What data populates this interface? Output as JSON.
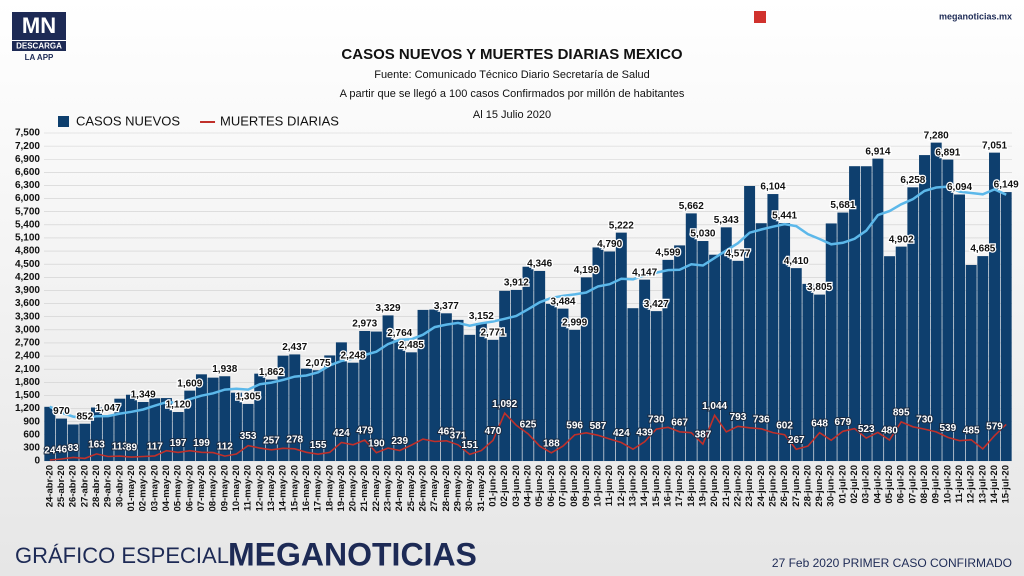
{
  "header": {
    "logo": "MN",
    "logo_sub": "DESCARGA",
    "logo_app": "LA APP",
    "site": "meganoticias.mx"
  },
  "footer": {
    "left": "GRÁFICO ESPECIAL",
    "brand": "MEGANOTICIAS",
    "right": "27 Feb 2020 PRIMER CASO CONFIRMADO"
  },
  "chart_data": {
    "type": "bar",
    "title": "CASOS NUEVOS Y MUERTES DIARIAS MEXICO",
    "subtitle": [
      "Fuente: Comunicado Técnico Diario Secretaría de Salud",
      "A partir que se llegó a 100 casos Confirmados por millón de habitantes",
      "Al 15 Julio 2020"
    ],
    "categories": [
      "24-abr-20",
      "25-abr-20",
      "26-abr-20",
      "27-abr-20",
      "28-abr-20",
      "29-abr-20",
      "30-abr-20",
      "01-may-20",
      "02-may-20",
      "03-may-20",
      "04-may-20",
      "05-may-20",
      "06-may-20",
      "07-may-20",
      "08-may-20",
      "09-may-20",
      "10-may-20",
      "11-may-20",
      "12-may-20",
      "13-may-20",
      "14-may-20",
      "15-may-20",
      "16-may-20",
      "17-may-20",
      "18-may-20",
      "19-may-20",
      "20-may-20",
      "21-may-20",
      "22-may-20",
      "23-may-20",
      "24-may-20",
      "25-may-20",
      "26-may-20",
      "27-may-20",
      "28-may-20",
      "29-may-20",
      "30-may-20",
      "31-may-20",
      "01-jun-20",
      "02-jun-20",
      "03-jun-20",
      "04-jun-20",
      "05-jun-20",
      "06-jun-20",
      "07-jun-20",
      "08-jun-20",
      "09-jun-20",
      "10-jun-20",
      "11-jun-20",
      "12-jun-20",
      "13-jun-20",
      "14-jun-20",
      "15-jun-20",
      "16-jun-20",
      "17-jun-20",
      "18-jun-20",
      "19-jun-20",
      "20-jun-20",
      "21-jun-20",
      "22-jun-20",
      "23-jun-20",
      "24-jun-20",
      "25-jun-20",
      "26-jun-20",
      "27-jun-20",
      "28-jun-20",
      "29-jun-20",
      "30-jun-20",
      "01-jul-20",
      "02-jul-20",
      "03-jul-20",
      "04-jul-20",
      "05-jul-20",
      "06-jul-20",
      "07-jul-20",
      "08-jul-20",
      "09-jul-20",
      "10-jul-20",
      "11-jul-20",
      "12-jul-20",
      "13-jul-20",
      "14-jul-20",
      "15-jul-20"
    ],
    "series": [
      {
        "name": "CASOS NUEVOS",
        "type": "bar",
        "color": "#0e3f6e",
        "trend_color": "#5cb8ea",
        "values": [
          1239,
          970,
          835,
          852,
          1223,
          1047,
          1425,
          1515,
          1349,
          1434,
          1439,
          1120,
          1609,
          1982,
          1906,
          1938,
          1562,
          1305,
          1997,
          1862,
          2409,
          2437,
          2112,
          2075,
          2414,
          2713,
          2248,
          2973,
          2960,
          3329,
          2764,
          2485,
          3455,
          3463,
          3377,
          3227,
          2885,
          3152,
          2771,
          3891,
          3912,
          4442,
          4346,
          3593,
          3484,
          2999,
          4199,
          4883,
          4790,
          5222,
          3494,
          4147,
          3427,
          4599,
          4930,
          5662,
          5030,
          4717,
          5343,
          4577,
          6288,
          5437,
          6104,
          5441,
          4410,
          4050,
          3805,
          5432,
          5681,
          6741,
          6740,
          6914,
          4683,
          4902,
          6258,
          6995,
          7280,
          6891,
          6094,
          4482,
          4685,
          7051,
          6149
        ],
        "value_labels": [
          null,
          "970",
          null,
          "852",
          null,
          "1,047",
          null,
          null,
          "1,349",
          null,
          null,
          "1,120",
          "1,609",
          null,
          null,
          "1,938",
          null,
          "1,305",
          null,
          "1,862",
          null,
          "2,437",
          null,
          "2,075",
          null,
          null,
          "2,248",
          "2,973",
          null,
          "3,329",
          "2,764",
          "2,485",
          null,
          null,
          "3,377",
          null,
          null,
          "3,152",
          "2,771",
          null,
          "3,912",
          null,
          "4,346",
          null,
          "3,484",
          "2,999",
          "4,199",
          null,
          "4,790",
          "5,222",
          null,
          "4,147",
          "3,427",
          "4,599",
          null,
          "5,662",
          "5,030",
          null,
          "5,343",
          "4,577",
          null,
          null,
          "6,104",
          "5,441",
          "4,410",
          null,
          "3,805",
          null,
          "5,681",
          null,
          null,
          "6,914",
          null,
          "4,902",
          "6,258",
          null,
          "7,280",
          "6,891",
          "6,094",
          null,
          "4,685",
          "7,051",
          "6,149"
        ]
      },
      {
        "name": "MUERTES DIARIAS",
        "type": "line",
        "color": "#c0302a",
        "values": [
          24,
          46,
          83,
          60,
          163,
          104,
          113,
          89,
          104,
          117,
          236,
          197,
          236,
          199,
          193,
          112,
          160,
          353,
          294,
          257,
          290,
          278,
          200,
          155,
          196,
          424,
          371,
          479,
          190,
          294,
          239,
          363,
          501,
          447,
          463,
          371,
          151,
          237,
          470,
          1092,
          816,
          625,
          341,
          188,
          341,
          596,
          645,
          587,
          504,
          424,
          269,
          439,
          730,
          770,
          667,
          647,
          387,
          1044,
          665,
          793,
          759,
          736,
          650,
          602,
          267,
          341,
          648,
          473,
          679,
          741,
          523,
          654,
          480,
          895,
          782,
          730,
          665,
          539,
          465,
          485,
          276,
          579,
          836
        ],
        "value_labels": [
          "24",
          "46",
          "83",
          null,
          "163",
          null,
          "113",
          "89",
          null,
          "117",
          null,
          "197",
          null,
          "199",
          null,
          "112",
          null,
          "353",
          null,
          "257",
          null,
          "278",
          null,
          "155",
          null,
          "424",
          null,
          "479",
          "190",
          null,
          "239",
          null,
          null,
          null,
          "463",
          "371",
          "151",
          null,
          "470",
          "1,092",
          null,
          "625",
          null,
          "188",
          null,
          "596",
          null,
          "587",
          null,
          "424",
          null,
          "439",
          "730",
          null,
          "667",
          null,
          "387",
          "1,044",
          null,
          "793",
          null,
          "736",
          null,
          "602",
          "267",
          null,
          "648",
          null,
          "679",
          null,
          "523",
          null,
          "480",
          "895",
          null,
          "730",
          null,
          "539",
          null,
          "485",
          null,
          "579",
          null
        ]
      }
    ],
    "ylim": [
      0,
      7500
    ],
    "yticks": [
      0,
      300,
      600,
      900,
      {
        "value": 1200,
        "label": "1,200"
      },
      {
        "value": 1500,
        "label": "1,500"
      },
      {
        "value": 1800,
        "label": "1,800"
      },
      {
        "value": 2100,
        "label": "2,100"
      },
      {
        "value": 2400,
        "label": "2,400"
      },
      {
        "value": 2700,
        "label": "2,700"
      },
      {
        "value": 3000,
        "label": "3,000"
      },
      {
        "value": 3300,
        "label": "3,300"
      },
      {
        "value": 3600,
        "label": "3,600"
      },
      {
        "value": 3900,
        "label": "3,900"
      },
      {
        "value": 4200,
        "label": "4,200"
      },
      {
        "value": 4500,
        "label": "4,500"
      },
      {
        "value": 4800,
        "label": "4,800"
      },
      {
        "value": 5100,
        "label": "5,100"
      },
      {
        "value": 5400,
        "label": "5,400"
      },
      {
        "value": 5700,
        "label": "5,700"
      },
      {
        "value": 6000,
        "label": "6,000"
      },
      {
        "value": 6300,
        "label": "6,300"
      },
      {
        "value": 6600,
        "label": "6,600"
      },
      {
        "value": 6900,
        "label": "6,900"
      },
      {
        "value": 7200,
        "label": "7,200"
      },
      {
        "value": 7500,
        "label": "7,500"
      }
    ],
    "grid": true,
    "legend": "top-left"
  }
}
